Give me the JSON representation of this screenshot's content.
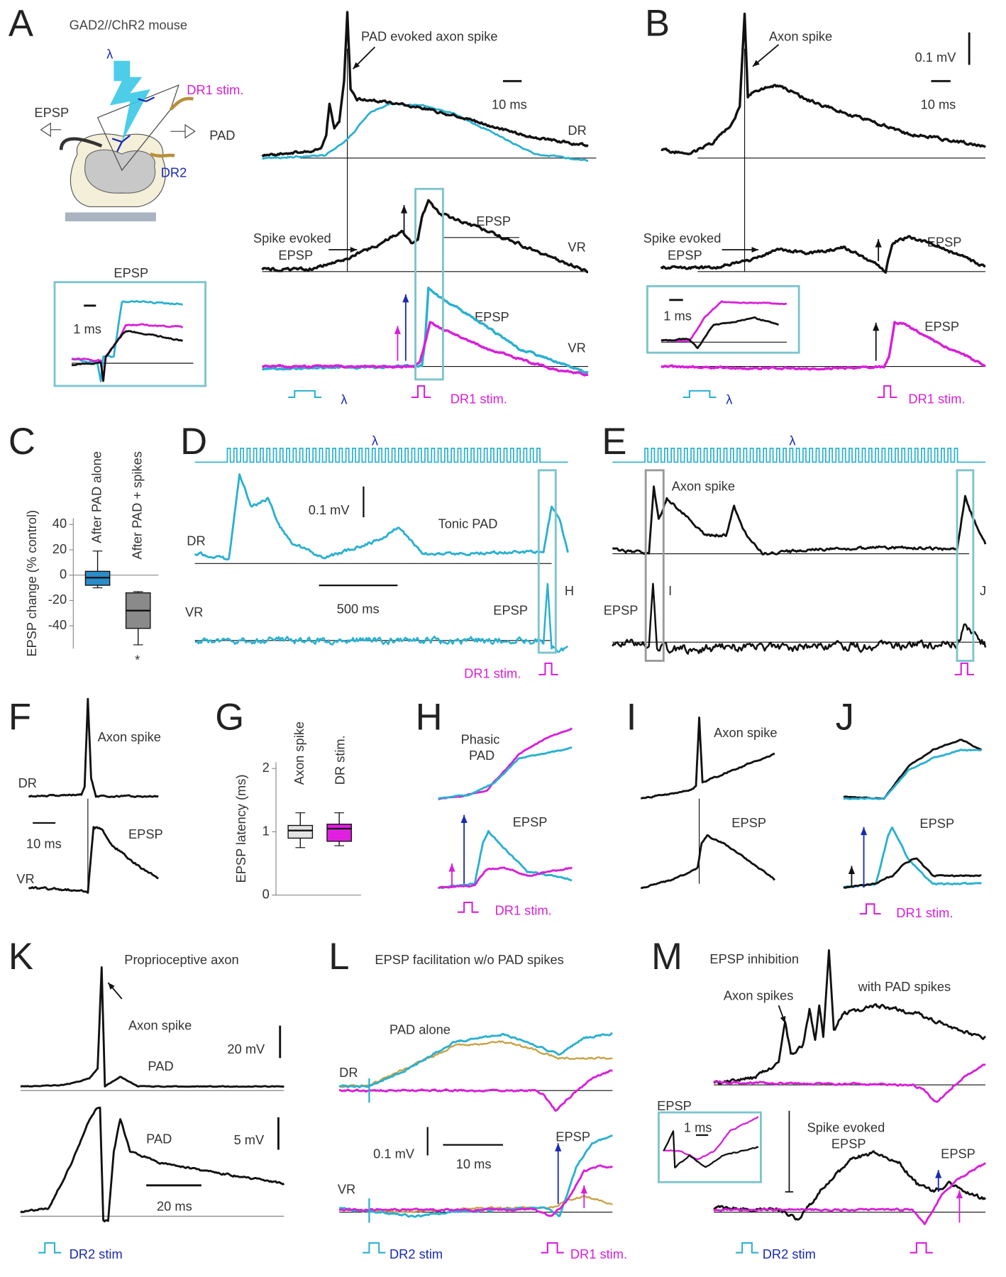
{
  "panels": {
    "A": {
      "letter": "A",
      "texts": [
        "GAD2//ChR2 mouse",
        "λ",
        "DR1 stim.",
        "EPSP",
        "PAD",
        "DR2",
        "EPSP",
        "1 ms",
        "PAD evoked axon spike",
        "10 ms",
        "DR",
        "Spike evoked",
        "EPSP",
        "EPSP",
        "VR",
        "EPSP",
        "VR",
        "λ",
        "DR1 stim."
      ]
    },
    "B": {
      "letter": "B",
      "texts": [
        "Axon spike",
        "0.1 mV",
        "10 ms",
        "Spike evoked",
        "EPSP",
        "EPSP",
        "1 ms",
        "EPSP",
        "λ",
        "DR1 stim."
      ]
    },
    "C": {
      "letter": "C"
    },
    "D": {
      "letter": "D",
      "texts": [
        "λ",
        "0.1 mV",
        "Tonic PAD",
        "DR",
        "500 ms",
        "VR",
        "EPSP",
        "H",
        "DR1 stim."
      ]
    },
    "E": {
      "letter": "E",
      "texts": [
        "λ",
        "Axon spike",
        "I",
        "J",
        "EPSP"
      ]
    },
    "F": {
      "letter": "F",
      "texts": [
        "Axon spike",
        "DR",
        "10 ms",
        "EPSP",
        "VR"
      ]
    },
    "G": {
      "letter": "G"
    },
    "H": {
      "letter": "H",
      "texts": [
        "Phasic",
        "PAD",
        "EPSP",
        "DR1 stim."
      ]
    },
    "I": {
      "letter": "I",
      "texts": [
        "Axon spike",
        "EPSP"
      ]
    },
    "J": {
      "letter": "J",
      "texts": [
        "EPSP",
        "DR1 stim."
      ]
    },
    "K": {
      "letter": "K",
      "texts": [
        "Proprioceptive axon",
        "Axon spike",
        "20 mV",
        "PAD",
        "PAD",
        "5 mV",
        "20 ms",
        "DR2 stim"
      ]
    },
    "L": {
      "letter": "L",
      "texts": [
        "EPSP facilitation w/o PAD spikes",
        "PAD alone",
        "DR",
        "0.1 mV",
        "10 ms",
        "EPSP",
        "VR",
        "DR2 stim",
        "DR1 stim."
      ]
    },
    "M": {
      "letter": "M",
      "texts": [
        "EPSP inhibition",
        "Axon spikes",
        "with PAD spikes",
        "EPSP",
        "1 ms",
        "Spike evoked",
        "EPSP",
        "EPSP",
        "DR2 stim"
      ]
    }
  },
  "chart_data": [
    {
      "type": "box",
      "ylabel": "EPSP change (% control)",
      "categories": [
        "After PAD alone",
        "After PAD + spikes"
      ],
      "colors": [
        "#2a8cc8",
        "#8a8a8a"
      ],
      "boxes": [
        {
          "min": -10,
          "q1": -8,
          "median": -2,
          "q3": 3,
          "max": 19
        },
        {
          "min": -55,
          "q1": -42,
          "median": -28,
          "q3": -14,
          "max": -13
        }
      ],
      "ylim": [
        -58,
        45
      ],
      "yticks": [
        40,
        20,
        0,
        -20,
        -40
      ],
      "annotations": [
        "*"
      ]
    },
    {
      "type": "box",
      "ylabel": "EPSP latency (ms)",
      "categories": [
        "Axon spike",
        "DR stim."
      ],
      "colors": [
        "#e4e4e4",
        "#e020e0"
      ],
      "boxes": [
        {
          "min": 0.75,
          "q1": 0.9,
          "median": 1.02,
          "q3": 1.1,
          "max": 1.3
        },
        {
          "min": 0.78,
          "q1": 0.85,
          "median": 1.05,
          "q3": 1.12,
          "max": 1.3
        }
      ],
      "ylim": [
        0,
        2.1
      ],
      "yticks": [
        0,
        1,
        2
      ]
    }
  ]
}
